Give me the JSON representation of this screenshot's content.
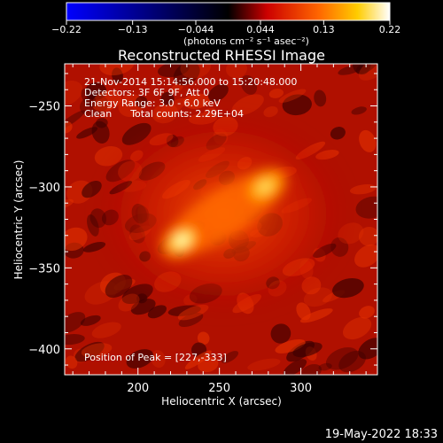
{
  "chart_data": {
    "type": "heatmap",
    "title": "Reconstructed RHESSI Image",
    "xlabel": "Heliocentric X (arcsec)",
    "ylabel": "Heliocentric Y (arcsec)",
    "xlim": [
      155,
      347
    ],
    "ylim": [
      -416,
      -224
    ],
    "x_ticks": [
      200,
      250,
      300
    ],
    "x_tick_labels": [
      "200",
      "250",
      "300"
    ],
    "y_ticks": [
      -250,
      -300,
      -350,
      -400
    ],
    "y_tick_labels": [
      "−250",
      "−300",
      "−350",
      "−400"
    ],
    "colorbar": {
      "min": -0.22,
      "max": 0.22,
      "ticks": [
        -0.22,
        -0.13,
        -0.044,
        0.044,
        0.13,
        0.22
      ],
      "tick_labels": [
        "−0.22",
        "−0.13",
        "−0.044",
        "0.044",
        "0.13",
        "0.22"
      ],
      "unit_label": "(photons cm⁻² s⁻¹ asec⁻²)",
      "colors": [
        "#0000ff",
        "#000000",
        "#cc0000",
        "#ff6600",
        "#ffcc00",
        "#ffffff"
      ]
    },
    "annotations": [
      "21-Nov-2014 15:14:56.000 to 15:20:48.000",
      "Detectors: 3F 6F 9F, Att 0",
      "Energy Range: 3.0 - 6.0 keV",
      "Clean      Total counts: 2.29E+04"
    ],
    "peak_label": "Position of Peak = [227,-333]",
    "peak": [
      227,
      -333
    ],
    "sources": [
      {
        "x": 227,
        "y": -333,
        "value": 0.22
      },
      {
        "x": 278,
        "y": -300,
        "value": 0.17
      }
    ]
  },
  "footer": {
    "date": "19-May-2022 18:33"
  }
}
